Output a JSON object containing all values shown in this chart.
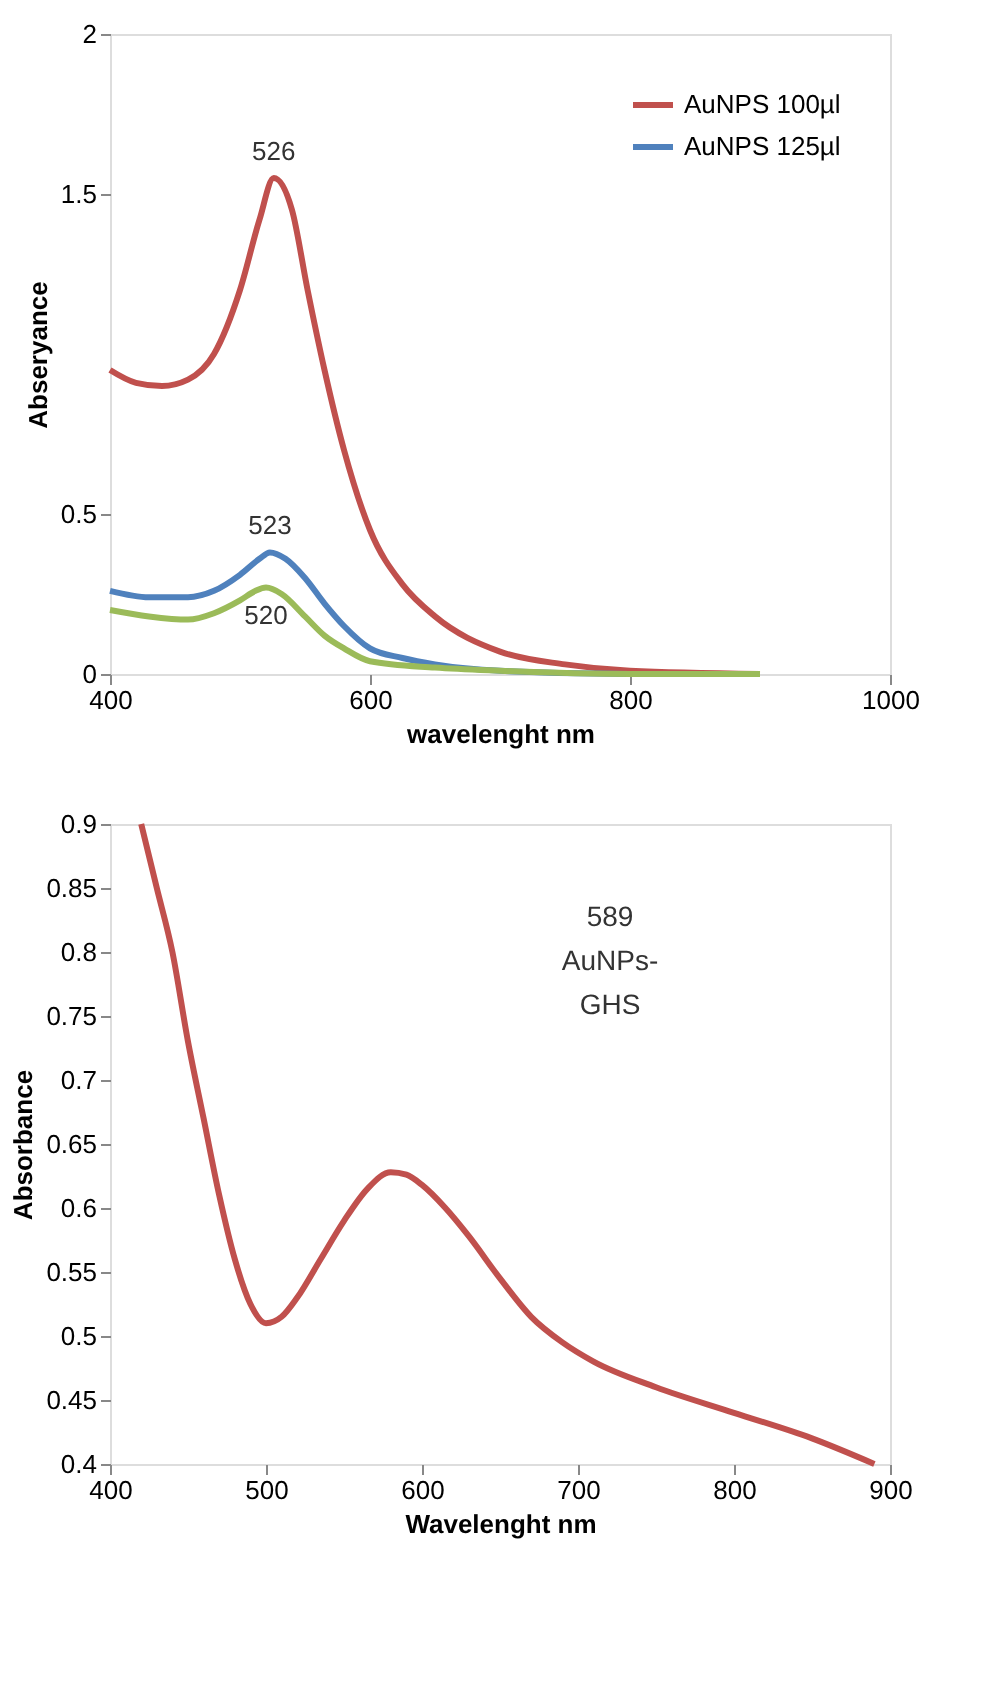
{
  "chart_data": [
    {
      "type": "line",
      "xlabel": "wavelenght nm",
      "ylabel": "Abseryance",
      "xlim": [
        400,
        1000
      ],
      "xticks": [
        400,
        600,
        800,
        1000
      ],
      "ylim": [
        0,
        2
      ],
      "yticks": [
        0,
        0.5,
        1.5,
        2
      ],
      "grid": false,
      "legend": "top right",
      "series": [
        {
          "name": "AuNPS 100µl",
          "color": "#c0504d",
          "x": [
            400,
            420,
            440,
            460,
            480,
            500,
            515,
            526,
            540,
            552,
            565,
            580,
            600,
            625,
            650,
            700,
            750,
            800,
            900
          ],
          "values": [
            0.95,
            0.91,
            0.9,
            0.92,
            1.0,
            1.2,
            1.42,
            1.55,
            1.45,
            1.2,
            0.95,
            0.7,
            0.45,
            0.28,
            0.18,
            0.07,
            0.03,
            0.01,
            0.0
          ]
        },
        {
          "name": "AuNPS 125µl",
          "color": "#4f81bd",
          "x": [
            400,
            430,
            460,
            480,
            500,
            515,
            523,
            535,
            550,
            565,
            580,
            600,
            625,
            650,
            700,
            800,
            900
          ],
          "values": [
            0.26,
            0.24,
            0.24,
            0.26,
            0.31,
            0.36,
            0.38,
            0.36,
            0.3,
            0.22,
            0.15,
            0.08,
            0.05,
            0.03,
            0.01,
            0.0,
            0.0
          ]
        },
        {
          "color": "#9bbb59",
          "x": [
            400,
            430,
            460,
            480,
            500,
            512,
            520,
            532,
            550,
            565,
            580,
            600,
            650,
            700,
            800,
            900
          ],
          "values": [
            0.2,
            0.18,
            0.17,
            0.19,
            0.23,
            0.26,
            0.27,
            0.25,
            0.18,
            0.12,
            0.08,
            0.04,
            0.02,
            0.01,
            0.0,
            0.0
          ]
        }
      ],
      "annotations": [
        {
          "text": "526",
          "x": 526,
          "y": 1.55
        },
        {
          "text": "523",
          "x": 523,
          "y": 0.38
        },
        {
          "text": "520",
          "x": 520,
          "y": 0.27
        }
      ]
    },
    {
      "type": "line",
      "xlabel": "Wavelenght   nm",
      "ylabel": "Absorbance",
      "xlim": [
        400,
        900
      ],
      "xticks": [
        400,
        500,
        600,
        700,
        800,
        900
      ],
      "ylim": [
        0.4,
        0.9
      ],
      "yticks": [
        0.4,
        0.45,
        0.5,
        0.55,
        0.6,
        0.65,
        0.7,
        0.75,
        0.8,
        0.85,
        0.9
      ],
      "grid": false,
      "series": [
        {
          "color": "#c0504d",
          "x": [
            420,
            430,
            440,
            450,
            460,
            470,
            480,
            490,
            500,
            510,
            520,
            535,
            550,
            565,
            580,
            590,
            600,
            615,
            630,
            650,
            670,
            690,
            710,
            750,
            800,
            850,
            890
          ],
          "values": [
            0.9,
            0.85,
            0.8,
            0.73,
            0.67,
            0.61,
            0.56,
            0.525,
            0.51,
            0.515,
            0.53,
            0.56,
            0.59,
            0.615,
            0.628,
            0.626,
            0.618,
            0.6,
            0.578,
            0.545,
            0.515,
            0.495,
            0.48,
            0.46,
            0.44,
            0.42,
            0.4
          ]
        }
      ],
      "annotations": [
        "589\nAuNPs-\nGHS"
      ]
    }
  ]
}
